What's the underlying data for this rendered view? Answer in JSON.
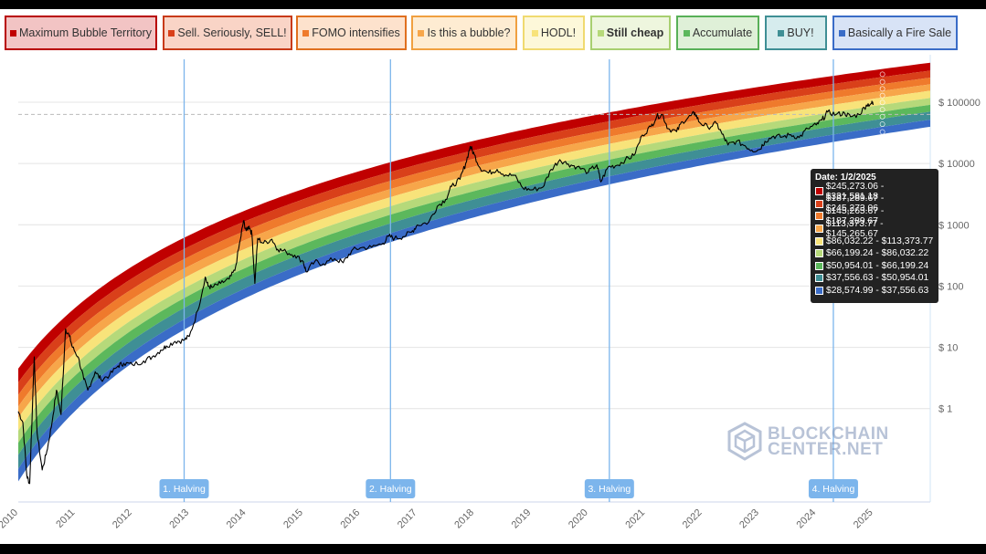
{
  "legend": [
    {
      "label": "Maximum Bubble Territory",
      "color": "#c00000",
      "bg": "#f2c4c4",
      "border": "#b80000",
      "bold": false
    },
    {
      "label": "Sell. Seriously, SELL!",
      "color": "#d9401a",
      "bg": "#f9d4c6",
      "border": "#c83a18",
      "bold": false
    },
    {
      "label": "FOMO intensifies",
      "color": "#ef7a2c",
      "bg": "#fde2cd",
      "border": "#e07020",
      "bold": false
    },
    {
      "label": "Is this a bubble?",
      "color": "#f7a64a",
      "bg": "#feecd2",
      "border": "#f0a040",
      "bold": false
    },
    {
      "label": "HODL!",
      "color": "#f8e37a",
      "bg": "#fdf8d9",
      "border": "#f0da70",
      "bold": false
    },
    {
      "label": "Still cheap",
      "color": "#b6d97a",
      "bg": "#eef6de",
      "border": "#a8cf70",
      "bold": true
    },
    {
      "label": "Accumulate",
      "color": "#5cb85c",
      "bg": "#dff0d8",
      "border": "#58b058",
      "bold": false
    },
    {
      "label": "BUY!",
      "color": "#3f8f95",
      "bg": "#d6ecee",
      "border": "#3f8f95",
      "bold": false
    },
    {
      "label": "Basically a Fire Sale",
      "color": "#3a6cc7",
      "bg": "#d8e3f6",
      "border": "#3a6cc7",
      "bold": false
    }
  ],
  "tooltip": {
    "date": "Date: 1/2/2025",
    "rows": [
      {
        "range": "$245,273.06 - $331,581.18",
        "color": "#c00000"
      },
      {
        "range": "$187,289.67 - $245,273.06",
        "color": "#d9401a"
      },
      {
        "range": "$145,265.67 - $187,289.67",
        "color": "#ef7a2c"
      },
      {
        "range": "$113,373.77 - $145,265.67",
        "color": "#f7a64a"
      },
      {
        "range": "$86,032.22 - $113,373.77",
        "color": "#f8e37a"
      },
      {
        "range": "$66,199.24 - $86,032.22",
        "color": "#b6d97a"
      },
      {
        "range": "$50,954.01 - $66,199.24",
        "color": "#5cb85c"
      },
      {
        "range": "$37,556.63 - $50,954.01",
        "color": "#3f8f95"
      },
      {
        "range": "$28,574.99 - $37,556.63",
        "color": "#3a6cc7"
      }
    ]
  },
  "watermark": {
    "line1": "BLOCKCHAIN",
    "line2": "CENTER.NET"
  },
  "chart_data": {
    "type": "area",
    "y_scale": "log",
    "ylim": [
      0.03,
      500000
    ],
    "xlim": [
      2010.0,
      2026.0
    ],
    "x_ticks": [
      "2010",
      "2011",
      "2012",
      "2013",
      "2014",
      "2015",
      "2016",
      "2017",
      "2018",
      "2019",
      "2020",
      "2021",
      "2022",
      "2023",
      "2024",
      "2025"
    ],
    "y_ticks": [
      {
        "value": 1,
        "label": "$ 1"
      },
      {
        "value": 10,
        "label": "$ 10"
      },
      {
        "value": 100,
        "label": "$ 100"
      },
      {
        "value": 1000,
        "label": "$ 1000"
      },
      {
        "value": 10000,
        "label": "$ 10000"
      },
      {
        "value": 100000,
        "label": "$ 100000"
      }
    ],
    "bands": {
      "colors": [
        "#c00000",
        "#d9401a",
        "#ef7a2c",
        "#f7a64a",
        "#f8e37a",
        "#b6d97a",
        "#5cb85c",
        "#3f8f95",
        "#3a6cc7"
      ],
      "boundaries_at_2025_01_02": [
        331581.18,
        245273.06,
        187289.67,
        145265.67,
        113373.77,
        86032.22,
        66199.24,
        50954.01,
        37556.63,
        28574.99
      ],
      "ranges_at_2010": [
        {
          "top": 4.5,
          "bottom": 0.065
        },
        {
          "top": 0.1,
          "bottom": 0.065
        }
      ]
    },
    "halvings": [
      {
        "label": "1. Halving",
        "x": 2012.91
      },
      {
        "label": "2. Halving",
        "x": 2016.53
      },
      {
        "label": "3. Halving",
        "x": 2020.37
      },
      {
        "label": "4. Halving",
        "x": 2024.3
      }
    ],
    "price_series": {
      "name": "BTC price",
      "points": [
        [
          2010.0,
          0.9
        ],
        [
          2010.08,
          0.6
        ],
        [
          2010.15,
          0.08
        ],
        [
          2010.2,
          0.06
        ],
        [
          2010.28,
          7
        ],
        [
          2010.33,
          0.4
        ],
        [
          2010.42,
          0.1
        ],
        [
          2010.5,
          0.2
        ],
        [
          2010.58,
          0.5
        ],
        [
          2010.67,
          2
        ],
        [
          2010.75,
          0.8
        ],
        [
          2010.83,
          20
        ],
        [
          2010.9,
          15
        ],
        [
          2010.95,
          10
        ],
        [
          2011.05,
          7
        ],
        [
          2011.15,
          3
        ],
        [
          2011.22,
          2
        ],
        [
          2011.35,
          4
        ],
        [
          2011.45,
          3
        ],
        [
          2011.6,
          3.5
        ],
        [
          2011.75,
          5
        ],
        [
          2011.85,
          5.5
        ],
        [
          2012.0,
          5.2
        ],
        [
          2012.2,
          6
        ],
        [
          2012.35,
          7
        ],
        [
          2012.5,
          9
        ],
        [
          2012.6,
          10.5
        ],
        [
          2012.75,
          12.5
        ],
        [
          2012.9,
          13
        ],
        [
          2013.0,
          15
        ],
        [
          2013.15,
          40
        ],
        [
          2013.28,
          140
        ],
        [
          2013.33,
          100
        ],
        [
          2013.4,
          95
        ],
        [
          2013.55,
          110
        ],
        [
          2013.7,
          130
        ],
        [
          2013.8,
          180
        ],
        [
          2013.9,
          600
        ],
        [
          2013.95,
          1150
        ],
        [
          2014.0,
          800
        ],
        [
          2014.05,
          950
        ],
        [
          2014.1,
          700
        ],
        [
          2014.15,
          110
        ],
        [
          2014.2,
          600
        ],
        [
          2014.3,
          500
        ],
        [
          2014.45,
          580
        ],
        [
          2014.55,
          400
        ],
        [
          2014.7,
          360
        ],
        [
          2014.85,
          320
        ],
        [
          2015.0,
          250
        ],
        [
          2015.05,
          170
        ],
        [
          2015.2,
          250
        ],
        [
          2015.35,
          230
        ],
        [
          2015.55,
          280
        ],
        [
          2015.7,
          240
        ],
        [
          2015.85,
          380
        ],
        [
          2016.0,
          420
        ],
        [
          2016.2,
          430
        ],
        [
          2016.4,
          500
        ],
        [
          2016.5,
          650
        ],
        [
          2016.6,
          600
        ],
        [
          2016.75,
          640
        ],
        [
          2016.9,
          760
        ],
        [
          2017.0,
          990
        ],
        [
          2017.2,
          1100
        ],
        [
          2017.35,
          2000
        ],
        [
          2017.5,
          2600
        ],
        [
          2017.6,
          4200
        ],
        [
          2017.75,
          5500
        ],
        [
          2017.85,
          10000
        ],
        [
          2017.93,
          19000
        ],
        [
          2018.0,
          14000
        ],
        [
          2018.1,
          8500
        ],
        [
          2018.25,
          7000
        ],
        [
          2018.4,
          8000
        ],
        [
          2018.55,
          6500
        ],
        [
          2018.7,
          6400
        ],
        [
          2018.85,
          4000
        ],
        [
          2019.0,
          3700
        ],
        [
          2019.2,
          4100
        ],
        [
          2019.35,
          8000
        ],
        [
          2019.5,
          11500
        ],
        [
          2019.65,
          9800
        ],
        [
          2019.8,
          8800
        ],
        [
          2020.0,
          7200
        ],
        [
          2020.15,
          9500
        ],
        [
          2020.22,
          5000
        ],
        [
          2020.35,
          8800
        ],
        [
          2020.5,
          9300
        ],
        [
          2020.65,
          11500
        ],
        [
          2020.8,
          13500
        ],
        [
          2020.95,
          29000
        ],
        [
          2021.1,
          40000
        ],
        [
          2021.2,
          58000
        ],
        [
          2021.3,
          63000
        ],
        [
          2021.4,
          37000
        ],
        [
          2021.55,
          33000
        ],
        [
          2021.65,
          48000
        ],
        [
          2021.8,
          60000
        ],
        [
          2021.87,
          67000
        ],
        [
          2021.95,
          47000
        ],
        [
          2022.1,
          39000
        ],
        [
          2022.25,
          45000
        ],
        [
          2022.35,
          30000
        ],
        [
          2022.45,
          20000
        ],
        [
          2022.6,
          23000
        ],
        [
          2022.75,
          19500
        ],
        [
          2022.87,
          16500
        ],
        [
          2023.0,
          16800
        ],
        [
          2023.1,
          23000
        ],
        [
          2023.25,
          28000
        ],
        [
          2023.4,
          27000
        ],
        [
          2023.55,
          29500
        ],
        [
          2023.7,
          26500
        ],
        [
          2023.85,
          37000
        ],
        [
          2024.0,
          42500
        ],
        [
          2024.1,
          51000
        ],
        [
          2024.2,
          69000
        ],
        [
          2024.35,
          63000
        ],
        [
          2024.5,
          66000
        ],
        [
          2024.6,
          58000
        ],
        [
          2024.75,
          63000
        ],
        [
          2024.88,
          90000
        ],
        [
          2024.97,
          96000
        ],
        [
          2025.0,
          94000
        ]
      ]
    },
    "reference_line_value": 63000,
    "tooltip_marker_x": 2025.0
  }
}
